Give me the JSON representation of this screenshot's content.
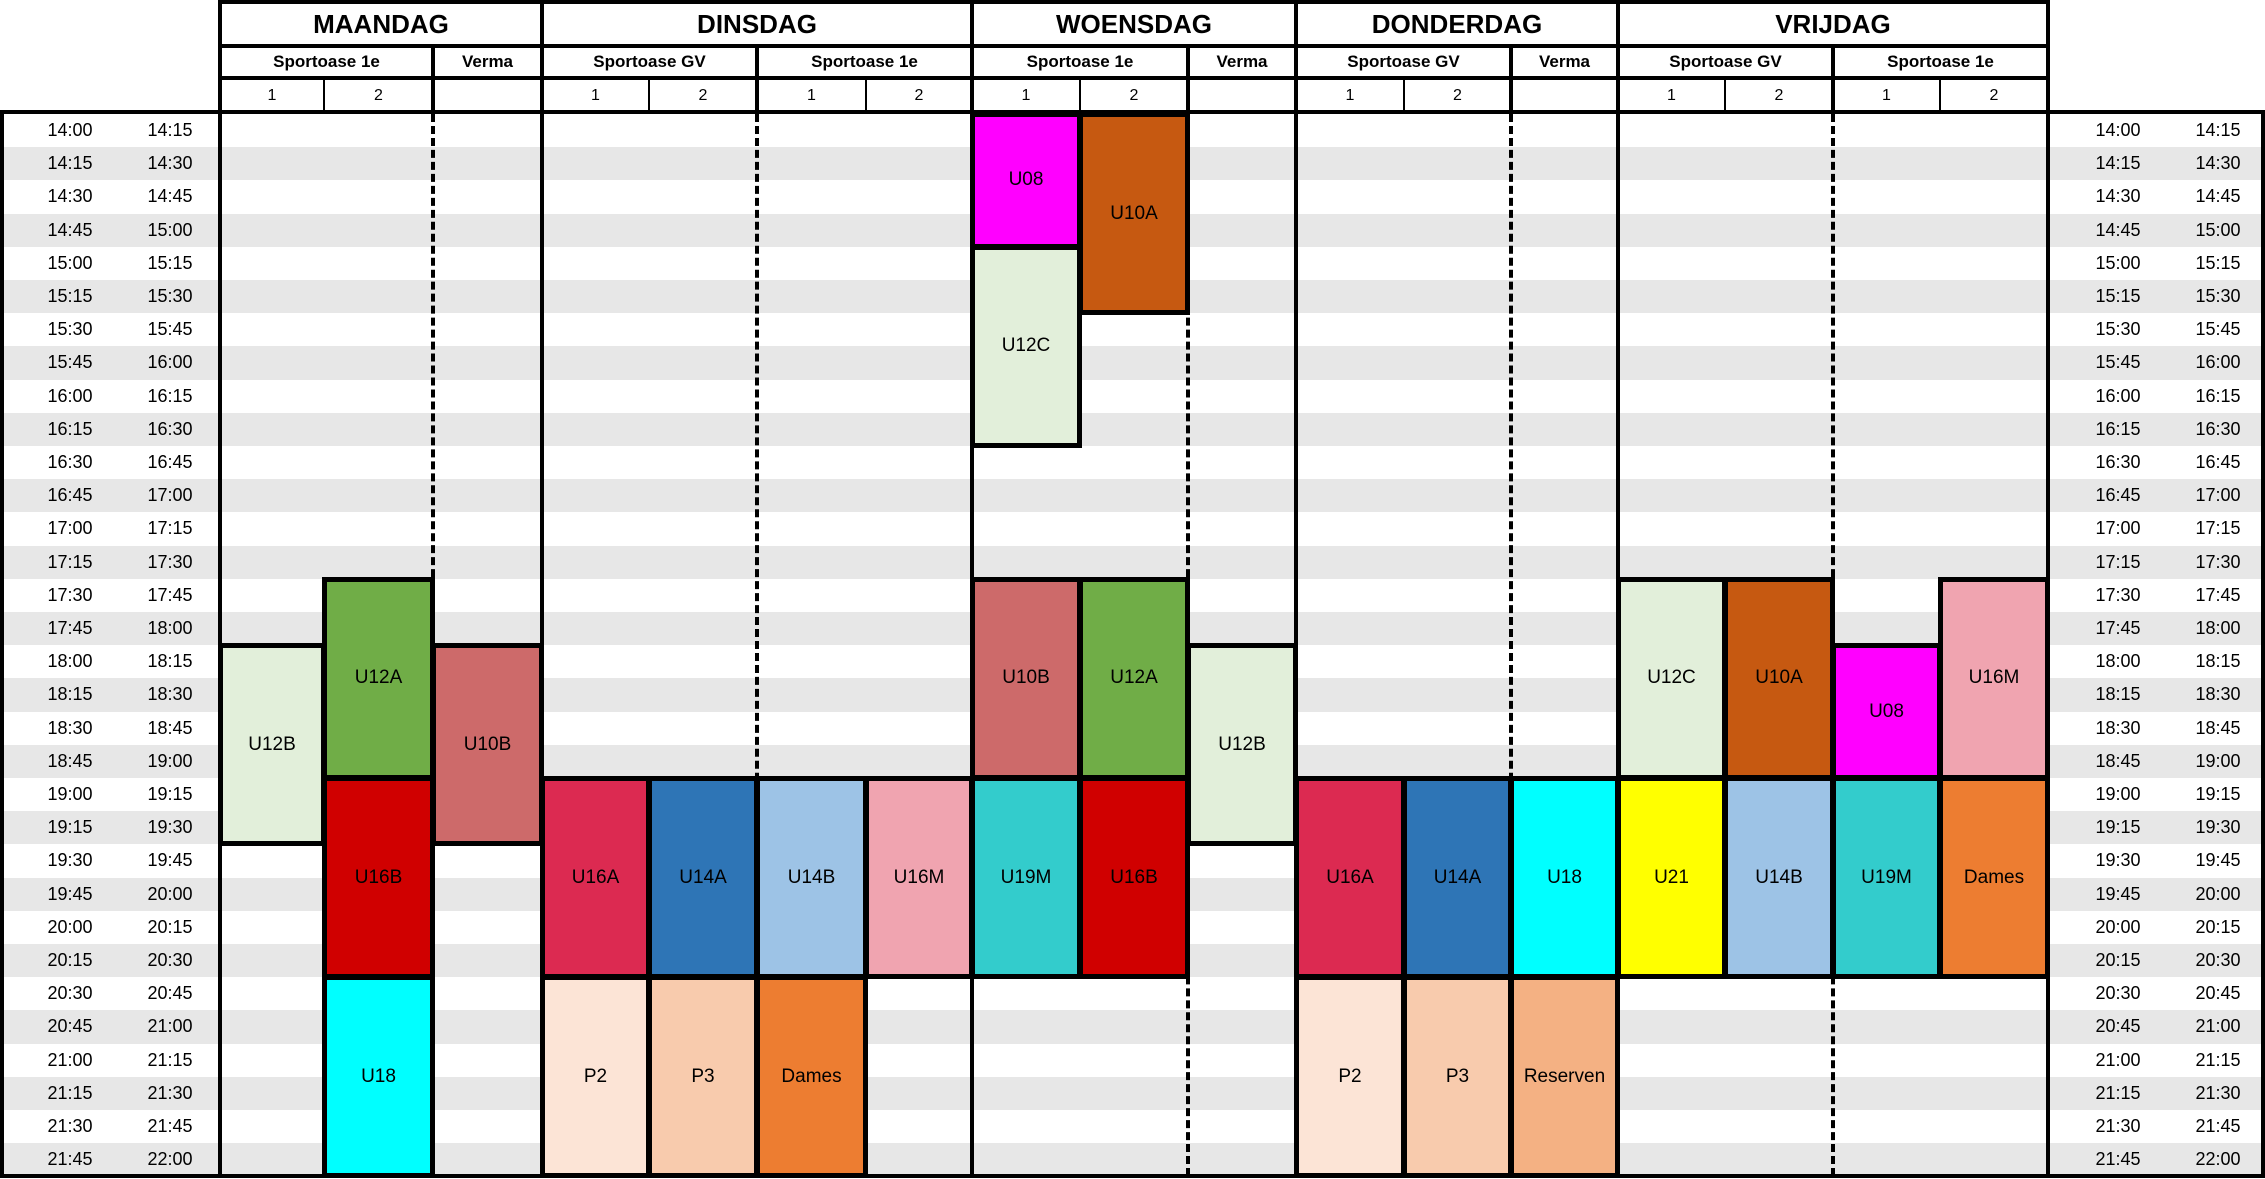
{
  "days": [
    {
      "name": "MAANDAG",
      "venues": [
        {
          "name": "Sportoase 1e",
          "slots": [
            "1",
            "2"
          ]
        },
        {
          "name": "Verma",
          "slots": [
            ""
          ]
        }
      ]
    },
    {
      "name": "DINSDAG",
      "venues": [
        {
          "name": "Sportoase GV",
          "slots": [
            "1",
            "2"
          ]
        },
        {
          "name": "Sportoase 1e",
          "slots": [
            "1",
            "2"
          ]
        }
      ]
    },
    {
      "name": "WOENSDAG",
      "venues": [
        {
          "name": "Sportoase 1e",
          "slots": [
            "1",
            "2"
          ]
        },
        {
          "name": "Verma",
          "slots": [
            ""
          ]
        }
      ]
    },
    {
      "name": "DONDERDAG",
      "venues": [
        {
          "name": "Sportoase GV",
          "slots": [
            "1",
            "2"
          ]
        },
        {
          "name": "Verma",
          "slots": [
            ""
          ]
        }
      ]
    },
    {
      "name": "VRIJDAG",
      "venues": [
        {
          "name": "Sportoase GV",
          "slots": [
            "1",
            "2"
          ]
        },
        {
          "name": "Sportoase 1e",
          "slots": [
            "1",
            "2"
          ]
        }
      ]
    }
  ],
  "times": [
    [
      "14:00",
      "14:15"
    ],
    [
      "14:15",
      "14:30"
    ],
    [
      "14:30",
      "14:45"
    ],
    [
      "14:45",
      "15:00"
    ],
    [
      "15:00",
      "15:15"
    ],
    [
      "15:15",
      "15:30"
    ],
    [
      "15:30",
      "15:45"
    ],
    [
      "15:45",
      "16:00"
    ],
    [
      "16:00",
      "16:15"
    ],
    [
      "16:15",
      "16:30"
    ],
    [
      "16:30",
      "16:45"
    ],
    [
      "16:45",
      "17:00"
    ],
    [
      "17:00",
      "17:15"
    ],
    [
      "17:15",
      "17:30"
    ],
    [
      "17:30",
      "17:45"
    ],
    [
      "17:45",
      "18:00"
    ],
    [
      "18:00",
      "18:15"
    ],
    [
      "18:15",
      "18:30"
    ],
    [
      "18:30",
      "18:45"
    ],
    [
      "18:45",
      "19:00"
    ],
    [
      "19:00",
      "19:15"
    ],
    [
      "19:15",
      "19:30"
    ],
    [
      "19:30",
      "19:45"
    ],
    [
      "19:45",
      "20:00"
    ],
    [
      "20:00",
      "20:15"
    ],
    [
      "20:15",
      "20:30"
    ],
    [
      "20:30",
      "20:45"
    ],
    [
      "20:45",
      "21:00"
    ],
    [
      "21:00",
      "21:15"
    ],
    [
      "21:15",
      "21:30"
    ],
    [
      "21:30",
      "21:45"
    ],
    [
      "21:45",
      "22:00"
    ]
  ],
  "sessions": [
    {
      "label": "U12B",
      "color": "#e2efda",
      "col": 0,
      "start": "18:00",
      "end": "19:30"
    },
    {
      "label": "U12A",
      "color": "#70ad47",
      "col": 1,
      "start": "17:30",
      "end": "19:00"
    },
    {
      "label": "U16B",
      "color": "#d00000",
      "col": 1,
      "start": "19:00",
      "end": "20:30"
    },
    {
      "label": "U18",
      "color": "#00ffff",
      "col": 1,
      "start": "20:30",
      "end": "22:00"
    },
    {
      "label": "U10B",
      "color": "#cd6a6a",
      "col": 2,
      "start": "18:00",
      "end": "19:30"
    },
    {
      "label": "U16A",
      "color": "#dc2a51",
      "col": 3,
      "start": "19:00",
      "end": "20:30"
    },
    {
      "label": "P2",
      "color": "#fce4d6",
      "col": 3,
      "start": "20:30",
      "end": "22:00"
    },
    {
      "label": "U14A",
      "color": "#2e75b6",
      "col": 4,
      "start": "19:00",
      "end": "20:30"
    },
    {
      "label": "P3",
      "color": "#f8cbad",
      "col": 4,
      "start": "20:30",
      "end": "22:00"
    },
    {
      "label": "U14B",
      "color": "#9dc3e6",
      "col": 5,
      "start": "19:00",
      "end": "20:30"
    },
    {
      "label": "Dames",
      "color": "#ed7d31",
      "col": 5,
      "start": "20:30",
      "end": "22:00"
    },
    {
      "label": "U16M",
      "color": "#f0a4b0",
      "col": 6,
      "start": "19:00",
      "end": "20:30"
    },
    {
      "label": "U08",
      "color": "#ff00ff",
      "col": 7,
      "start": "14:00",
      "end": "15:00"
    },
    {
      "label": "U12C",
      "color": "#e2efda",
      "col": 7,
      "start": "15:00",
      "end": "16:30"
    },
    {
      "label": "U10B",
      "color": "#cd6a6a",
      "col": 7,
      "start": "17:30",
      "end": "19:00"
    },
    {
      "label": "U19M",
      "color": "#33cccc",
      "col": 7,
      "start": "19:00",
      "end": "20:30"
    },
    {
      "label": "U10A",
      "color": "#c65911",
      "col": 8,
      "start": "14:00",
      "end": "15:30"
    },
    {
      "label": "U12A",
      "color": "#70ad47",
      "col": 8,
      "start": "17:30",
      "end": "19:00"
    },
    {
      "label": "U16B",
      "color": "#d00000",
      "col": 8,
      "start": "19:00",
      "end": "20:30"
    },
    {
      "label": "U12B",
      "color": "#e2efda",
      "col": 9,
      "start": "18:00",
      "end": "19:30"
    },
    {
      "label": "U16A",
      "color": "#dc2a51",
      "col": 10,
      "start": "19:00",
      "end": "20:30"
    },
    {
      "label": "P2",
      "color": "#fce4d6",
      "col": 10,
      "start": "20:30",
      "end": "22:00"
    },
    {
      "label": "U14A",
      "color": "#2e75b6",
      "col": 11,
      "start": "19:00",
      "end": "20:30"
    },
    {
      "label": "P3",
      "color": "#f8cbad",
      "col": 11,
      "start": "20:30",
      "end": "22:00"
    },
    {
      "label": "U18",
      "color": "#00ffff",
      "col": 12,
      "start": "19:00",
      "end": "20:30"
    },
    {
      "label": "Reserven",
      "color": "#f4b183",
      "col": 12,
      "start": "20:30",
      "end": "22:00"
    },
    {
      "label": "U12C",
      "color": "#e2efda",
      "col": 13,
      "start": "17:30",
      "end": "19:00"
    },
    {
      "label": "U21",
      "color": "#ffff00",
      "col": 13,
      "start": "19:00",
      "end": "20:30"
    },
    {
      "label": "U10A",
      "color": "#c65911",
      "col": 14,
      "start": "17:30",
      "end": "19:00"
    },
    {
      "label": "U14B",
      "color": "#9dc3e6",
      "col": 14,
      "start": "19:00",
      "end": "20:30"
    },
    {
      "label": "U08",
      "color": "#ff00ff",
      "col": 15,
      "start": "18:00",
      "end": "19:00"
    },
    {
      "label": "U19M",
      "color": "#33cccc",
      "col": 15,
      "start": "19:00",
      "end": "20:30"
    },
    {
      "label": "U16M",
      "color": "#f0a4b0",
      "col": 16,
      "start": "17:30",
      "end": "19:00"
    },
    {
      "label": "Dames",
      "color": "#ed7d31",
      "col": 16,
      "start": "19:00",
      "end": "20:30"
    }
  ]
}
